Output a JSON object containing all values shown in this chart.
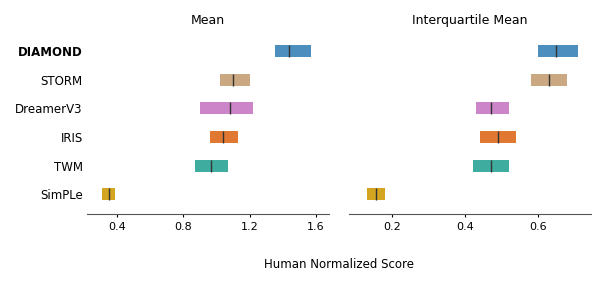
{
  "title_left": "Mean",
  "title_right": "Interquartile Mean",
  "xlabel": "Human Normalized Score",
  "methods": [
    "DIAMOND",
    "STORM",
    "DreamerV3",
    "IRIS",
    "TWM",
    "SimPLe"
  ],
  "colors": {
    "DIAMOND": "#4c8fbe",
    "STORM": "#c9a882",
    "DreamerV3": "#cc85c8",
    "IRIS": "#e07832",
    "TWM": "#3eada0",
    "SimPLe": "#d4a520"
  },
  "mean": {
    "DIAMOND": [
      1.35,
      1.44,
      1.57
    ],
    "STORM": [
      1.02,
      1.1,
      1.2
    ],
    "DreamerV3": [
      0.9,
      1.08,
      1.22
    ],
    "IRIS": [
      0.96,
      1.04,
      1.13
    ],
    "TWM": [
      0.87,
      0.97,
      1.07
    ],
    "SimPLe": [
      0.31,
      0.35,
      0.39
    ]
  },
  "iqmean": {
    "DIAMOND": [
      0.6,
      0.65,
      0.71
    ],
    "STORM": [
      0.58,
      0.63,
      0.68
    ],
    "DreamerV3": [
      0.43,
      0.47,
      0.52
    ],
    "IRIS": [
      0.44,
      0.49,
      0.54
    ],
    "TWM": [
      0.42,
      0.47,
      0.52
    ],
    "SimPLe": [
      0.13,
      0.155,
      0.18
    ]
  },
  "mean_xlim": [
    0.22,
    1.68
  ],
  "iqmean_xlim": [
    0.08,
    0.745
  ],
  "mean_xticks": [
    0.4,
    0.8,
    1.2,
    1.6
  ],
  "iqmean_xticks": [
    0.2,
    0.4,
    0.6
  ],
  "bar_height": 0.42
}
